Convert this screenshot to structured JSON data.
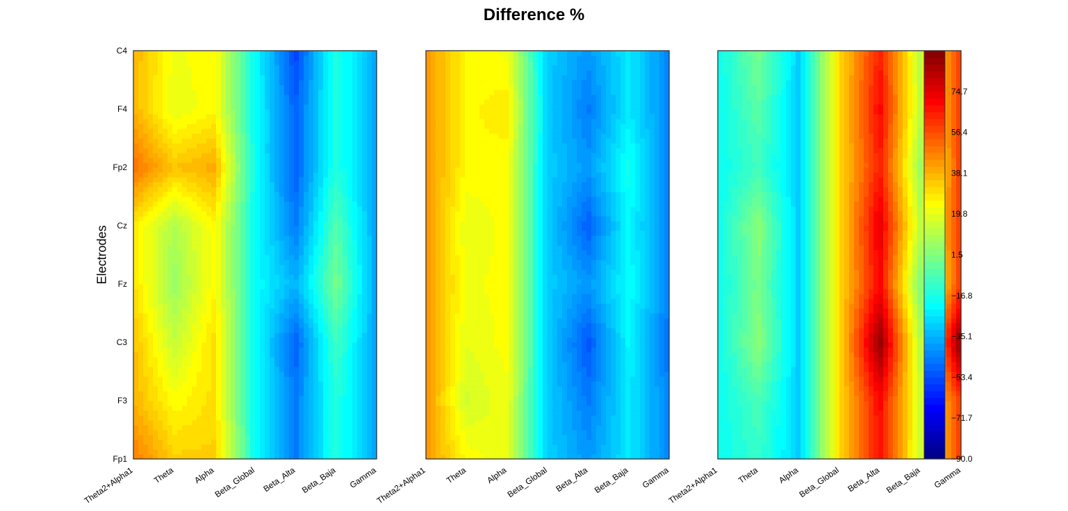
{
  "chart_data": {
    "type": "heatmap",
    "title": "Difference %",
    "ylabel": "Electrodes",
    "xlabel": "",
    "electrodes": [
      "Fp1",
      "F3",
      "C3",
      "Fz",
      "Cz",
      "Fp2",
      "F4",
      "C4"
    ],
    "bands": [
      "Theta2+Alpha1",
      "Theta",
      "Alpha",
      "Beta_Global",
      "Beta_Alta",
      "Beta_Baja",
      "Gamma"
    ],
    "colormap": "jet",
    "colorbar": {
      "min": -90.0,
      "max": 93.0,
      "ticks": [
        "−90.0",
        "−71.7",
        "−53.4",
        "−35.1",
        "−16.8",
        "1.5",
        "19.8",
        "38.1",
        "56.4",
        "74.7"
      ],
      "tick_values": [
        -90.0,
        -71.7,
        -53.4,
        -35.1,
        -16.8,
        1.5,
        19.8,
        38.1,
        56.4,
        74.7
      ]
    },
    "panels": [
      {
        "values": [
          [
            48,
            33,
            33,
            -20,
            -45,
            -15,
            -38
          ],
          [
            38,
            24,
            30,
            -20,
            -45,
            -15,
            -38
          ],
          [
            36,
            14,
            30,
            -20,
            -50,
            -10,
            -38
          ],
          [
            30,
            6,
            25,
            -20,
            -35,
            0,
            -38
          ],
          [
            28,
            10,
            25,
            -20,
            -45,
            -6,
            -38
          ],
          [
            50,
            35,
            40,
            -20,
            -50,
            -15,
            -38
          ],
          [
            38,
            20,
            25,
            -20,
            -50,
            -15,
            -38
          ],
          [
            38,
            22,
            25,
            -20,
            -55,
            -15,
            -38
          ]
        ]
      },
      {
        "values": [
          [
            43,
            25,
            20,
            -30,
            -40,
            -25,
            -43
          ],
          [
            43,
            16,
            22,
            -30,
            -45,
            -25,
            -43
          ],
          [
            43,
            20,
            24,
            -30,
            -52,
            -22,
            -48
          ],
          [
            43,
            22,
            24,
            -30,
            -40,
            -20,
            -43
          ],
          [
            43,
            20,
            24,
            -30,
            -50,
            -22,
            -43
          ],
          [
            43,
            25,
            24,
            -30,
            -40,
            -18,
            -43
          ],
          [
            43,
            25,
            28,
            -30,
            -45,
            -25,
            -43
          ],
          [
            43,
            25,
            22,
            -30,
            -40,
            -25,
            -43
          ]
        ]
      },
      {
        "values": [
          [
            -20,
            -12,
            -30,
            30,
            68,
            15,
            60
          ],
          [
            -20,
            -8,
            -30,
            30,
            70,
            15,
            60
          ],
          [
            -20,
            4,
            -30,
            30,
            90,
            10,
            93
          ],
          [
            -20,
            0,
            -30,
            30,
            70,
            0,
            60
          ],
          [
            -20,
            4,
            -30,
            30,
            75,
            12,
            60
          ],
          [
            -20,
            -10,
            -30,
            30,
            65,
            5,
            60
          ],
          [
            -20,
            -5,
            -30,
            30,
            70,
            12,
            60
          ],
          [
            -20,
            0,
            -30,
            30,
            65,
            12,
            60
          ]
        ]
      }
    ]
  }
}
